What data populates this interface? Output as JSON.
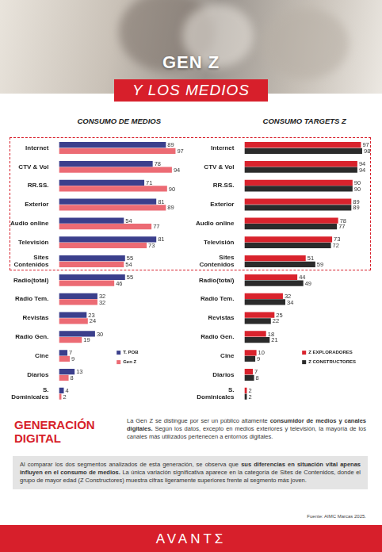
{
  "header": {
    "title": "GEN Z",
    "subtitle": "Y LOS MEDIOS"
  },
  "chart_data": [
    {
      "type": "bar",
      "title": "CONSUMO DE MEDIOS",
      "orientation": "horizontal",
      "categories": [
        "Internet",
        "CTV & Vol",
        "RR.SS.",
        "Exterior",
        "Audio online",
        "Televisión",
        "Sites Contenidos",
        "Radio(total)",
        "Radio Tem.",
        "Revistas",
        "Radio Gen.",
        "Cine",
        "Diarios",
        "S. Dominicales"
      ],
      "series": [
        {
          "name": "T. POB",
          "color": "#3b3f8c",
          "values": [
            89,
            78,
            71,
            81,
            54,
            81,
            55,
            55,
            32,
            23,
            30,
            7,
            13,
            4
          ]
        },
        {
          "name": "Gen Z",
          "color": "#ec6b74",
          "values": [
            97,
            94,
            90,
            89,
            77,
            73,
            54,
            46,
            32,
            24,
            19,
            9,
            8,
            2
          ]
        }
      ],
      "xlim": [
        0,
        100
      ],
      "grid": false,
      "tick_labels": "y",
      "data_labels": true,
      "legend": "lower right"
    },
    {
      "type": "bar",
      "title": "CONSUMO TARGETS Z",
      "orientation": "horizontal",
      "categories": [
        "Internet",
        "CTV & Vol",
        "RR.SS.",
        "Exterior",
        "Audio online",
        "Televisión",
        "Sites Contenidos",
        "Radio(total)",
        "Radio Tem.",
        "Revistas",
        "Radio Gen.",
        "Cine",
        "Diarios",
        "S. Dominicales"
      ],
      "series": [
        {
          "name": "Z EXPLORADORES",
          "color": "#d9232d",
          "values": [
            97,
            94,
            90,
            89,
            78,
            73,
            51,
            44,
            32,
            25,
            18,
            10,
            7,
            2
          ]
        },
        {
          "name": "Z CONSTRUCTORES",
          "color": "#2b2b2b",
          "values": [
            98,
            94,
            90,
            89,
            77,
            72,
            59,
            49,
            34,
            22,
            21,
            9,
            8,
            2
          ]
        }
      ],
      "xlim": [
        0,
        100
      ],
      "grid": false,
      "tick_labels": "y",
      "data_labels": true,
      "legend": "lower right"
    }
  ],
  "section": {
    "heading": "GENERACIÓN DIGITAL",
    "paragraph": [
      {
        "text": "La Gen Z se distingue por ser un público altamente ",
        "bold": false
      },
      {
        "text": "consumidor de medios y canales digitales.",
        "bold": true
      },
      {
        "text": " Según los datos, excepto en medios exteriores y televisión, la mayoría de los canales más utilizados pertenecen a entornos digitales.",
        "bold": false
      }
    ]
  },
  "note": [
    {
      "text": "Al comparar los dos segmentos analizados de esta generación, se observa que ",
      "bold": false
    },
    {
      "text": "sus diferencias en situación vital apenas influyen en el consumo de medios.",
      "bold": true
    },
    {
      "text": " La única variación significativa aparece en la categoría de Sites de Contenidos, donde el grupo de mayor edad (Z Constructores) muestra cifras ligeramente superiores frente al segmento más joven.",
      "bold": false
    }
  ],
  "source": "Fuente: AIMC Marcas 2025.",
  "footer": {
    "brand": "AVANTΣ"
  }
}
